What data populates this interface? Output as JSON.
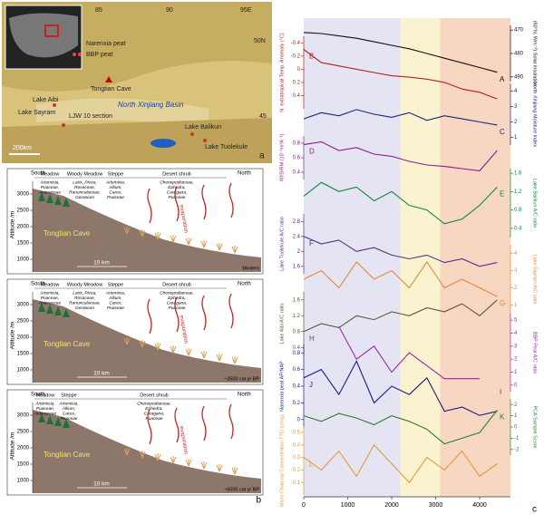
{
  "map": {
    "panel": "a",
    "lon_ticks": [
      "85",
      "90",
      "95E"
    ],
    "lat_ticks": [
      "50N",
      "45"
    ],
    "labels": [
      "Narenxia peat",
      "BBP peat",
      "Tongtian Cave",
      "Lake Aibi",
      "Lake Sayram",
      "North Xinjiang Basin",
      "LJW 10 section",
      "Lake Balikun",
      "Lake Tuolekule"
    ],
    "scale": "200km"
  },
  "profiles": {
    "panel": "b",
    "south": "South",
    "north": "North",
    "cave": "Tongtian Cave",
    "evaporation": "evaporation",
    "scale": "10 km",
    "axis_label": "Altitude /m",
    "yticks": [
      1000,
      1500,
      2000,
      2500,
      3000
    ],
    "items": [
      {
        "panel": "b1",
        "time": "Modern",
        "crops": [
          "Barley",
          "Wheat"
        ],
        "zones": [
          {
            "name": "Meadow",
            "taxa": [
              "Artemisia,",
              "Poaceae,",
              "Asteraceae"
            ]
          },
          {
            "name": "Woody Meadow",
            "taxa": [
              "Larix, Picea,",
              "Rosaceae,",
              "Ranunculaceae,",
              "Geranium"
            ]
          },
          {
            "name": "Steppe",
            "taxa": [
              "Artemisia,",
              "Allium,",
              "Carex,",
              "Poaceae"
            ]
          },
          {
            "name": "Desert shrub",
            "taxa": [
              "Chenopodiaceae,",
              "Ephedra,",
              "Caragana,",
              "Poaceae"
            ]
          }
        ]
      },
      {
        "panel": "b2",
        "time": "~3500 cal yr BP",
        "crops": [],
        "zones": [
          {
            "name": "Meadow",
            "taxa": [
              "Artemisia,",
              "Poaceae,",
              "Asteraceae"
            ]
          },
          {
            "name": "Woody Meadow",
            "taxa": [
              "Larix, Picea,",
              "Rosaceae,",
              "Ranunculaceae,",
              "Geranium"
            ]
          },
          {
            "name": "Steppe",
            "taxa": [
              "Artemisia,",
              "Allium,",
              "Carex,",
              "Poaceae"
            ]
          },
          {
            "name": "Desert shrub",
            "taxa": [
              "Chenopodiaceae,",
              "Ephedra,",
              "Caragana,",
              "Poaceae"
            ]
          }
        ]
      },
      {
        "panel": "b3",
        "time": "~5000 cal yr BP",
        "crops": [],
        "zones": [
          {
            "name": "Meadow",
            "taxa": [
              "Artemisia,",
              "Poaceae,",
              "Asteraceae"
            ]
          },
          {
            "name": "Steppe",
            "taxa": [
              "Artemisia,",
              "Allium,",
              "Carex,",
              "Poaceae"
            ]
          },
          {
            "name": "Desert shrub",
            "taxa": [
              "Chenopodiaceae,",
              "Ephedra,",
              "Caragana,",
              "Poaceae"
            ]
          }
        ]
      }
    ]
  },
  "chart_data": {
    "type": "line",
    "panel": "c",
    "x": [
      0,
      400,
      800,
      1200,
      1600,
      2000,
      2400,
      2800,
      3200,
      3600,
      4000,
      4400
    ],
    "xlim": [
      0,
      4700
    ],
    "xticks": [
      0,
      1000,
      2000,
      3000,
      4000
    ],
    "periods": [
      {
        "start": 0,
        "end": 2200,
        "color": "#e4e4f2"
      },
      {
        "start": 2200,
        "end": 3100,
        "color": "#fbf3cf"
      },
      {
        "start": 3100,
        "end": 4700,
        "color": "#f7d6c2"
      }
    ],
    "series": [
      {
        "letter": "A",
        "name": "(60°N, Wm⁻²) Solar insolation",
        "side": "right",
        "color": "#111111",
        "ylim": [
          492,
          468
        ],
        "yticks": [
          470,
          480,
          490
        ],
        "values": [
          471,
          471.5,
          472.5,
          473.5,
          475,
          476.5,
          478,
          480,
          482,
          484,
          486,
          488
        ]
      },
      {
        "letter": "B",
        "name": "N. extratropical Temp. Anomaly (°C)",
        "side": "left",
        "color": "#b22222",
        "ylim": [
          0.6,
          -0.5
        ],
        "yticks": [
          -0.4,
          -0.2,
          0,
          0.2,
          0.4
        ],
        "values": [
          -0.3,
          -0.1,
          -0.05,
          0,
          0.05,
          0.1,
          0.12,
          0.15,
          0.2,
          0.3,
          0.35,
          0.45
        ]
      },
      {
        "letter": "C",
        "name": "North Xinjiang Moisture Index",
        "side": "right",
        "color": "#1a237e",
        "ylim": [
          0.5,
          4.5
        ],
        "yticks": [
          1,
          2,
          3,
          4
        ],
        "values": [
          2.2,
          2.6,
          2.4,
          2.8,
          2.5,
          2.3,
          2.6,
          2.1,
          2.4,
          2.2,
          2.0,
          1.8
        ]
      },
      {
        "letter": "D",
        "name": "Xlf/SIRM (10⁻⁸m³A⁻¹)",
        "side": "left",
        "color": "#8e1b8e",
        "ylim": [
          0.3,
          0.9
        ],
        "yticks": [
          0.4,
          0.6,
          0.8
        ],
        "values": [
          0.78,
          0.82,
          0.7,
          0.74,
          0.65,
          0.62,
          0.55,
          0.5,
          0.48,
          0.45,
          0.42,
          0.7
        ]
      },
      {
        "letter": "E",
        "name": "Lake Balikun A/C ratio",
        "side": "right",
        "color": "#0a8a3c",
        "ylim": [
          0.2,
          1.7
        ],
        "yticks": [
          0.4,
          0.8,
          1.2,
          1.6
        ],
        "values": [
          1.1,
          1.4,
          1.2,
          1.3,
          1.0,
          1.2,
          0.9,
          0.8,
          0.5,
          0.6,
          0.9,
          1.3
        ]
      },
      {
        "letter": "F",
        "name": "Lake Tuolekule A/C ratio",
        "side": "left",
        "color": "#5b2c8a",
        "ylim": [
          1.4,
          3
        ],
        "yticks": [
          1.6,
          2,
          2.4,
          2.8
        ],
        "values": [
          2.4,
          2.2,
          2.3,
          2.0,
          2.1,
          1.9,
          1.8,
          1.9,
          1.7,
          1.8,
          1.6,
          1.7
        ]
      },
      {
        "letter": "G",
        "name": "Lake Sayram A/C ratio",
        "side": "right",
        "color": "#e0893a",
        "ylim": [
          0.5,
          4.5
        ],
        "yticks": [
          1,
          2,
          3,
          4
        ],
        "values": [
          2.5,
          3,
          2,
          3.5,
          2.5,
          3,
          2,
          3.5,
          2,
          2.5,
          2,
          1.5
        ]
      },
      {
        "letter": "H",
        "name": "Lake Aibi A/C ratio",
        "side": "left",
        "color": "#5a5a3a",
        "ylim": [
          0.2,
          1.8
        ],
        "yticks": [
          0.4,
          0.8,
          1.2,
          1.6
        ],
        "values": [
          0.8,
          1.0,
          0.9,
          1.2,
          1.1,
          1.3,
          1.2,
          1.4,
          1.3,
          1.5,
          1.2,
          1.6
        ]
      },
      {
        "letter": "I",
        "name": "BBP Peat A/C ratio",
        "side": "right",
        "color": "#9c27b0",
        "ylim": [
          -0.5,
          5.5
        ],
        "yticks": [
          0,
          1,
          2,
          3,
          4,
          5
        ],
        "values": [
          null,
          null,
          4.5,
          2,
          3,
          1,
          2.5,
          1.5,
          0.5,
          0.5,
          0.5,
          null
        ]
      },
      {
        "letter": "J",
        "name": "Narenxia peat AP/NAP",
        "side": "left",
        "color": "#1a1a8c",
        "ylim": [
          -0.1,
          0.9
        ],
        "yticks": [
          0,
          0.2,
          0.4,
          0.6,
          0.8
        ],
        "values": [
          0.5,
          0.6,
          0.3,
          0.7,
          0.2,
          0.4,
          0.3,
          0.5,
          0.1,
          0.15,
          0.05,
          0.1
        ]
      },
      {
        "letter": "K",
        "name": "PCA Sample Score",
        "side": "right",
        "color": "#2e7d32",
        "ylim": [
          -2.5,
          2.5
        ],
        "yticks": [
          -2,
          -1,
          0,
          1,
          2
        ],
        "values": [
          1,
          0.5,
          1.2,
          0.8,
          0.2,
          1.0,
          0.5,
          -0.2,
          -1.5,
          -1,
          -0.5,
          1.5
        ]
      },
      {
        "letter": "L",
        "name": "Micro Charcoal Concentration TTD (cm/g)",
        "side": "left",
        "color": "#e39b3a",
        "ylim": [
          0,
          0.55
        ],
        "yticks": [
          0.1,
          0.2,
          0.3,
          0.4,
          0.5
        ],
        "values": [
          0.3,
          0.2,
          0.35,
          0.15,
          0.4,
          0.25,
          0.1,
          0.3,
          0.2,
          0.35,
          0.15,
          0.25
        ]
      }
    ]
  }
}
